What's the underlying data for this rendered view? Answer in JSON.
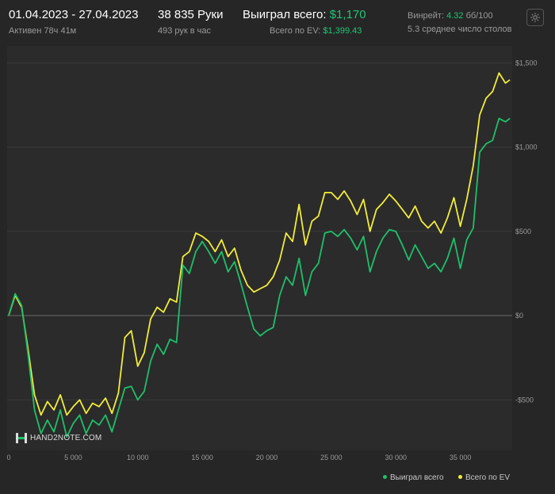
{
  "header": {
    "date_range": "01.04.2023 - 27.04.2023",
    "active": "Активен 78ч 41м",
    "hands": "38 835 Руки",
    "hands_per_hour": "493 рук в час",
    "won_total_label": "Выиграл всего:",
    "won_total_value": "$1,170",
    "ev_total_label": "Всего по EV:",
    "ev_total_value": "$1,399.43",
    "winrate_label": "Винрейт:",
    "winrate_value": "4.32",
    "winrate_unit": "бб/100",
    "avg_tables": "5.3 среднее число столов"
  },
  "brand": {
    "logo_text": "HAND2NOTE.COM"
  },
  "colors": {
    "won": "#1fbf6a",
    "ev": "#f2ec3a",
    "grid": "#3a3a3a",
    "zero": "#6a6a6a"
  },
  "icons": {
    "settings": "gear-icon"
  },
  "chart_data": {
    "type": "line",
    "x_ticks": [
      0,
      5000,
      10000,
      15000,
      20000,
      25000,
      30000,
      35000
    ],
    "x_tick_labels": [
      "0",
      "5 000",
      "10 000",
      "15 000",
      "20 000",
      "25 000",
      "30 000",
      "35 000"
    ],
    "y_ticks": [
      -500,
      0,
      500,
      1000,
      1500
    ],
    "y_tick_labels": [
      "-$500",
      "$0",
      "$500",
      "$1,000",
      "$1,500"
    ],
    "xlim": [
      0,
      38835
    ],
    "ylim": [
      -800,
      1600
    ],
    "grid": true,
    "legend_position": "bottom-right",
    "series": [
      {
        "name": "Выиграл всего",
        "color": "#1fbf6a",
        "x": [
          0,
          500,
          1000,
          1500,
          2000,
          2500,
          3000,
          3500,
          4000,
          4500,
          5000,
          5500,
          6000,
          6500,
          7000,
          7500,
          8000,
          8500,
          9000,
          9500,
          10000,
          10500,
          11000,
          11500,
          12000,
          12500,
          13000,
          13500,
          14000,
          14500,
          15000,
          15500,
          16000,
          16500,
          17000,
          17500,
          18000,
          18500,
          19000,
          19500,
          20000,
          20500,
          21000,
          21500,
          22000,
          22500,
          23000,
          23500,
          24000,
          24500,
          25000,
          25500,
          26000,
          26500,
          27000,
          27500,
          28000,
          28500,
          29000,
          29500,
          30000,
          30500,
          31000,
          31500,
          32000,
          32500,
          33000,
          33500,
          34000,
          34500,
          35000,
          35500,
          36000,
          36500,
          37000,
          37500,
          38000,
          38500,
          38835
        ],
        "y": [
          0,
          130,
          60,
          -230,
          -560,
          -700,
          -620,
          -690,
          -560,
          -720,
          -640,
          -590,
          -700,
          -620,
          -650,
          -590,
          -690,
          -560,
          -430,
          -420,
          -500,
          -450,
          -270,
          -170,
          -230,
          -140,
          -160,
          300,
          250,
          380,
          440,
          380,
          310,
          380,
          260,
          320,
          190,
          50,
          -80,
          -120,
          -90,
          -70,
          120,
          230,
          180,
          340,
          120,
          260,
          310,
          490,
          500,
          470,
          510,
          460,
          390,
          470,
          260,
          380,
          460,
          510,
          500,
          420,
          330,
          420,
          350,
          280,
          310,
          260,
          340,
          460,
          280,
          450,
          520,
          970,
          1020,
          1040,
          1170,
          1150,
          1170
        ]
      },
      {
        "name": "Всего по EV",
        "color": "#f2ec3a",
        "x": [
          0,
          500,
          1000,
          1500,
          2000,
          2500,
          3000,
          3500,
          4000,
          4500,
          5000,
          5500,
          6000,
          6500,
          7000,
          7500,
          8000,
          8500,
          9000,
          9500,
          10000,
          10500,
          11000,
          11500,
          12000,
          12500,
          13000,
          13500,
          14000,
          14500,
          15000,
          15500,
          16000,
          16500,
          17000,
          17500,
          18000,
          18500,
          19000,
          19500,
          20000,
          20500,
          21000,
          21500,
          22000,
          22500,
          23000,
          23500,
          24000,
          24500,
          25000,
          25500,
          26000,
          26500,
          27000,
          27500,
          28000,
          28500,
          29000,
          29500,
          30000,
          30500,
          31000,
          31500,
          32000,
          32500,
          33000,
          33500,
          34000,
          34500,
          35000,
          35500,
          36000,
          36500,
          37000,
          37500,
          38000,
          38500,
          38835
        ],
        "y": [
          0,
          120,
          50,
          -200,
          -470,
          -590,
          -510,
          -560,
          -470,
          -590,
          -540,
          -500,
          -580,
          -520,
          -540,
          -490,
          -580,
          -460,
          -130,
          -90,
          -300,
          -220,
          -20,
          50,
          20,
          100,
          80,
          350,
          380,
          490,
          470,
          440,
          380,
          450,
          350,
          400,
          270,
          180,
          140,
          160,
          180,
          230,
          330,
          490,
          440,
          660,
          420,
          560,
          590,
          730,
          730,
          690,
          740,
          680,
          600,
          690,
          500,
          630,
          670,
          720,
          680,
          630,
          580,
          650,
          560,
          520,
          560,
          490,
          580,
          700,
          530,
          690,
          890,
          1190,
          1290,
          1330,
          1440,
          1380,
          1399
        ]
      }
    ]
  },
  "legend": {
    "won_label": "Выиграл всего",
    "ev_label": "Всего по EV"
  }
}
